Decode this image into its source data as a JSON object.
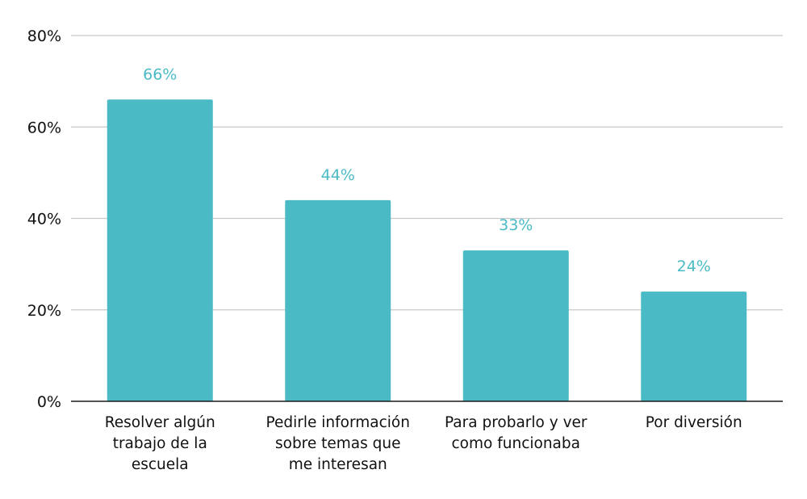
{
  "colors": {
    "bar": "#4abbc5",
    "data_label": "#4abbc5",
    "grid": "#c8c8c8",
    "axis": "#1a1a1a",
    "text": "#111111"
  },
  "chart_data": {
    "type": "bar",
    "categories": [
      "Resolver algún trabajo de la escuela",
      "Pedirle información sobre temas que me interesan",
      "Para probarlo y ver como funcionaba",
      "Por diversión"
    ],
    "category_lines": [
      [
        "Resolver algún",
        "trabajo de la",
        "escuela"
      ],
      [
        "Pedirle información",
        "sobre temas que",
        "me interesan"
      ],
      [
        "Para probarlo y ver",
        "como funcionaba"
      ],
      [
        "Por diversión"
      ]
    ],
    "values": [
      66,
      44,
      33,
      24
    ],
    "data_labels": [
      "66%",
      "44%",
      "33%",
      "24%"
    ],
    "ylim": [
      0,
      80
    ],
    "y_ticks": [
      0,
      20,
      40,
      60,
      80
    ],
    "y_tick_labels": [
      "0%",
      "20%",
      "40%",
      "60%",
      "80%"
    ],
    "grid": true,
    "title": "",
    "xlabel": "",
    "ylabel": ""
  }
}
